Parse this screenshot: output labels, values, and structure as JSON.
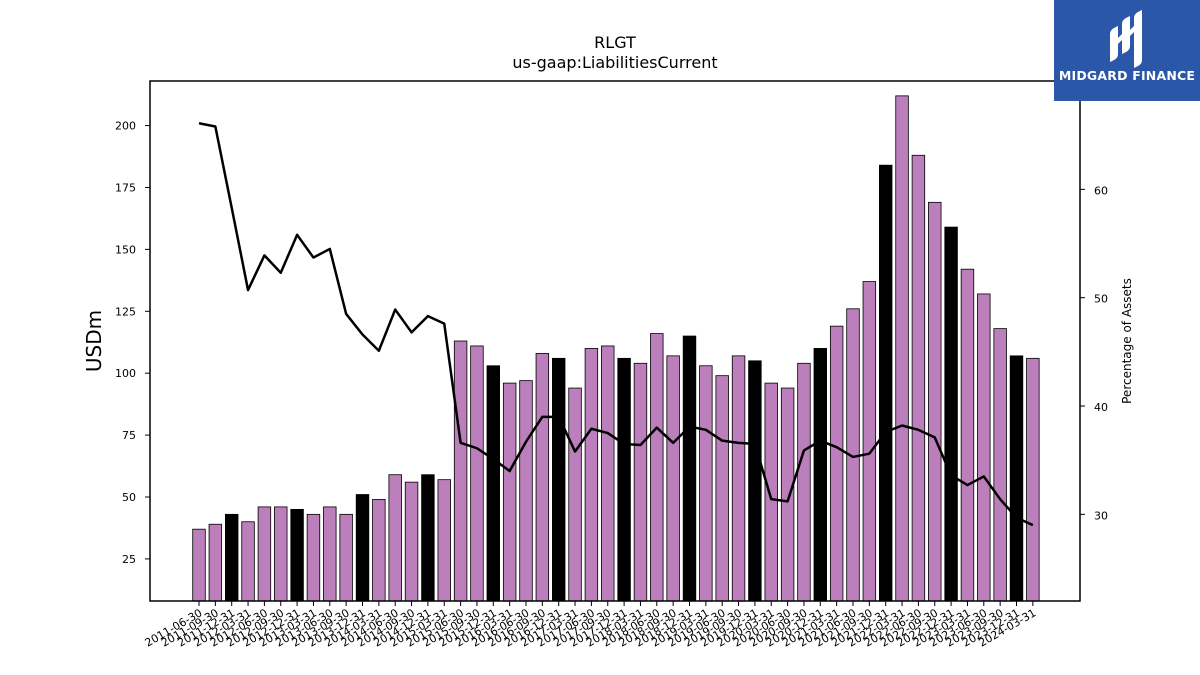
{
  "brand": {
    "name": "MIDGARD FINANCE",
    "background": "#2b57a8",
    "mark_icon": "midgard-logo-icon"
  },
  "chart_data": {
    "type": "bar",
    "title": "RLGT",
    "subtitle": "us-gaap:LiabilitiesCurrent",
    "ylabel": "USDm",
    "y2label": "Percentage of Assets",
    "ylim": [
      8,
      218
    ],
    "y2lim": [
      22,
      70
    ],
    "yticks": [
      25,
      50,
      75,
      100,
      125,
      150,
      175,
      200
    ],
    "y2ticks": [
      30,
      40,
      50,
      60
    ],
    "grid": false,
    "colors": {
      "bar_default": "#bb7fbb",
      "bar_highlight": "#000000",
      "line": "#000000"
    },
    "categories": [
      "2011-06-30",
      "2011-09-30",
      "2011-12-31",
      "2012-03-31",
      "2012-06-30",
      "2012-09-30",
      "2012-12-31",
      "2013-03-31",
      "2013-06-30",
      "2013-09-30",
      "2013-12-31",
      "2014-03-31",
      "2014-06-30",
      "2014-09-30",
      "2014-12-31",
      "2015-03-31",
      "2015-06-30",
      "2015-09-30",
      "2015-12-31",
      "2016-03-31",
      "2016-06-30",
      "2016-09-30",
      "2016-12-31",
      "2017-03-31",
      "2017-06-30",
      "2017-09-30",
      "2017-12-31",
      "2018-03-31",
      "2018-06-30",
      "2018-09-30",
      "2018-12-31",
      "2019-03-31",
      "2019-06-30",
      "2019-09-30",
      "2019-12-31",
      "2020-03-31",
      "2020-06-30",
      "2020-09-30",
      "2020-12-31",
      "2021-03-31",
      "2021-06-30",
      "2021-09-30",
      "2021-12-31",
      "2022-03-31",
      "2022-06-30",
      "2022-09-30",
      "2022-12-31",
      "2023-03-31",
      "2023-06-30",
      "2023-09-30",
      "2023-12-31",
      "2024-03-31"
    ],
    "series": [
      {
        "type": "bar",
        "values": [
          37,
          39,
          43,
          40,
          46,
          46,
          45,
          43,
          46,
          43,
          51,
          49,
          59,
          56,
          59,
          57,
          113,
          111,
          103,
          96,
          97,
          108,
          106,
          94,
          110,
          111,
          106,
          104,
          116,
          107,
          115,
          103,
          99,
          107,
          105,
          96,
          94,
          104,
          110,
          119,
          126,
          137,
          184,
          212,
          188,
          169,
          159,
          142,
          132,
          118,
          107,
          106
        ],
        "highlight": [
          false,
          false,
          true,
          false,
          false,
          false,
          true,
          false,
          false,
          false,
          true,
          false,
          false,
          false,
          true,
          false,
          false,
          false,
          true,
          false,
          false,
          false,
          true,
          false,
          false,
          false,
          true,
          false,
          false,
          false,
          true,
          false,
          false,
          false,
          true,
          false,
          false,
          false,
          true,
          false,
          false,
          false,
          true,
          false,
          false,
          false,
          true,
          false,
          false,
          false,
          true,
          false
        ]
      },
      {
        "type": "line",
        "axis": "right",
        "values": [
          66.1,
          65.8,
          58.3,
          50.7,
          53.9,
          52.3,
          55.8,
          53.7,
          54.5,
          48.5,
          46.6,
          45.1,
          48.9,
          46.8,
          48.3,
          47.6,
          36.6,
          36.1,
          35.1,
          34.0,
          36.7,
          39.0,
          39.0,
          35.8,
          37.9,
          37.5,
          36.5,
          36.4,
          38.0,
          36.6,
          38.1,
          37.8,
          36.8,
          36.6,
          36.5,
          31.4,
          31.2,
          35.9,
          36.8,
          36.2,
          35.3,
          35.6,
          37.6,
          38.2,
          37.8,
          37.1,
          33.6,
          32.7,
          33.5,
          31.4,
          29.7,
          29.0
        ]
      }
    ]
  }
}
